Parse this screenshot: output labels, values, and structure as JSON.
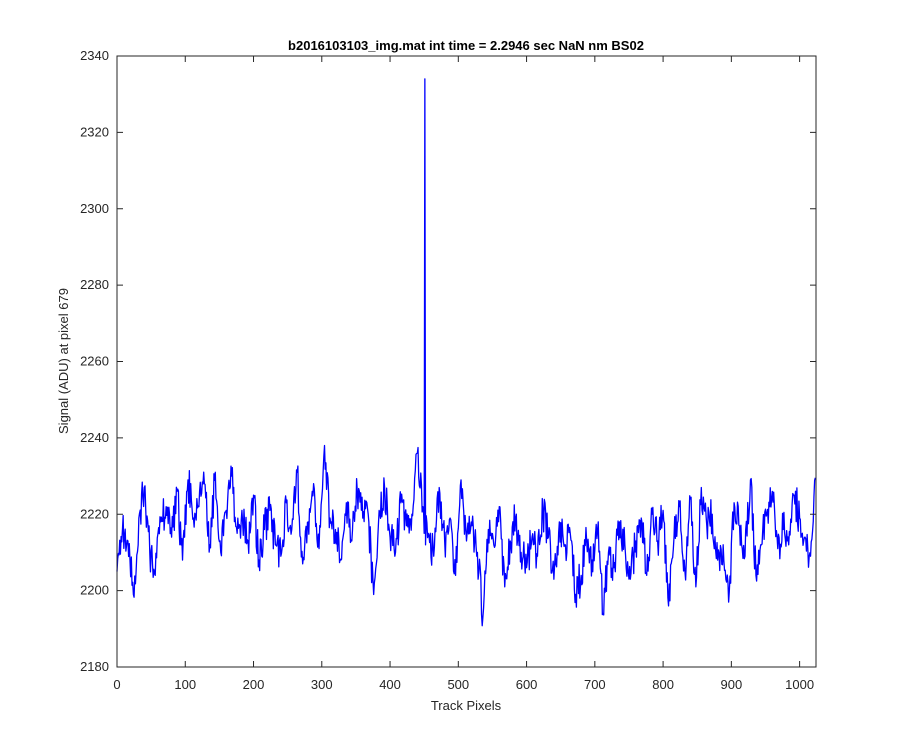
{
  "chart_data": {
    "type": "line",
    "title": "b2016103103_img.mat int time = 2.2946 sec  NaN nm BS02",
    "xlabel": "Track Pixels",
    "ylabel": "Signal (ADU) at pixel 679",
    "xlim": [
      0,
      1024
    ],
    "ylim": [
      2180,
      2340
    ],
    "xticks": [
      0,
      100,
      200,
      300,
      400,
      500,
      600,
      700,
      800,
      900,
      1000
    ],
    "yticks": [
      2180,
      2200,
      2220,
      2240,
      2260,
      2280,
      2300,
      2320,
      2340
    ],
    "grid": false,
    "series_color": "#0000ff",
    "x_step": 8,
    "series": [
      {
        "values": [
          2205,
          2216,
          2213,
          2199,
          2219,
          2227,
          2210,
          2204,
          2218,
          2222,
          2214,
          2226,
          2208,
          2229,
          2219,
          2222,
          2228,
          2212,
          2231,
          2210,
          2221,
          2230,
          2215,
          2218,
          2213,
          2225,
          2208,
          2216,
          2221,
          2212,
          2209,
          2223,
          2216,
          2231,
          2207,
          2218,
          2228,
          2211,
          2238,
          2219,
          2216,
          2208,
          2223,
          2213,
          2226,
          2219,
          2220,
          2199,
          2221,
          2227,
          2214,
          2210,
          2223,
          2217,
          2220,
          2236,
          2222,
          2215,
          2209,
          2227,
          2213,
          2219,
          2204,
          2229,
          2213,
          2217,
          2210,
          2193,
          2216,
          2212,
          2222,
          2201,
          2213,
          2219,
          2210,
          2206,
          2214,
          2209,
          2221,
          2214,
          2203,
          2218,
          2212,
          2215,
          2199,
          2204,
          2213,
          2208,
          2216,
          2194,
          2210,
          2206,
          2218,
          2212,
          2203,
          2213,
          2219,
          2204,
          2220,
          2213,
          2221,
          2196,
          2214,
          2222,
          2205,
          2224,
          2201,
          2227,
          2217,
          2220,
          2208,
          2212,
          2197,
          2223,
          2217,
          2209,
          2229,
          2204,
          2212,
          2220,
          2226,
          2211,
          2216,
          2212,
          2225,
          2219,
          2214,
          2209,
          2232
        ]
      }
    ],
    "spike": {
      "x": 451,
      "peak": 2334,
      "base": 2212
    }
  }
}
